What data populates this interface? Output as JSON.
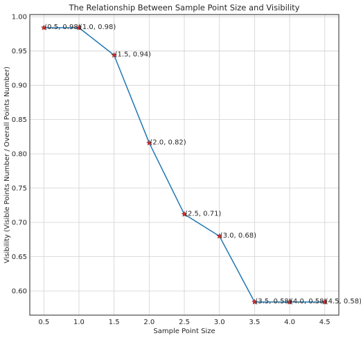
{
  "chart_data": {
    "type": "line",
    "title": "The Relationship Between Sample Point Size and Visibility",
    "xlabel": "Sample Point Size",
    "ylabel": "Visibility (Visible Points Number / Overall Points Number)",
    "x": [
      0.5,
      1.0,
      1.5,
      2.0,
      2.5,
      3.0,
      3.5,
      4.0,
      4.5
    ],
    "y": [
      0.984,
      0.984,
      0.944,
      0.816,
      0.712,
      0.68,
      0.584,
      0.584,
      0.584
    ],
    "point_labels": [
      "(0.5, 0.98)",
      "(1.0, 0.98)",
      "(1.5, 0.94)",
      "(2.0, 0.82)",
      "(2.5, 0.71)",
      "(3.0, 0.68)",
      "(3.5, 0.58)",
      "(4.0, 0.58)",
      "(4.5, 0.58)"
    ],
    "xticks": [
      0.5,
      1.0,
      1.5,
      2.0,
      2.5,
      3.0,
      3.5,
      4.0,
      4.5
    ],
    "xtick_labels": [
      "0.5",
      "1.0",
      "1.5",
      "2.0",
      "2.5",
      "3.0",
      "3.5",
      "4.0",
      "4.5"
    ],
    "yticks": [
      0.6,
      0.65,
      0.7,
      0.75,
      0.8,
      0.85,
      0.9,
      0.95,
      1.0
    ],
    "ytick_labels": [
      "0.60",
      "0.65",
      "0.70",
      "0.75",
      "0.80",
      "0.85",
      "0.90",
      "0.95",
      "1.00"
    ],
    "xlim": [
      0.3,
      4.7
    ],
    "ylim": [
      0.5648,
      1.0032
    ],
    "grid": true,
    "line_color": "#1f77b4",
    "marker": "star",
    "marker_color": "#d62728"
  }
}
